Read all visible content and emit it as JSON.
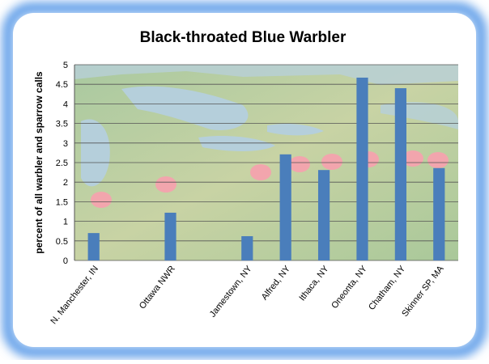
{
  "chart_data": {
    "type": "bar",
    "title": "Black-throated Blue Warbler",
    "y_label": "percent of all warbler and sparrow calls",
    "categories": [
      "N. Manchester, IN",
      null,
      "Ottawa NWR",
      null,
      "Jamestown, NY",
      "Alfred, NY",
      "Ithaca, NY",
      "Oneonta, NY",
      "Chatham, NY",
      "Skinner SP, MA"
    ],
    "values": [
      0.7,
      null,
      1.22,
      null,
      0.62,
      2.71,
      2.31,
      4.67,
      4.4,
      2.36
    ],
    "color": "#4a7ebb",
    "ylim": [
      0,
      5
    ],
    "yticks": [
      0,
      0.5,
      1,
      1.5,
      2,
      2.5,
      3,
      3.5,
      4,
      4.5,
      5
    ],
    "grid": true
  }
}
